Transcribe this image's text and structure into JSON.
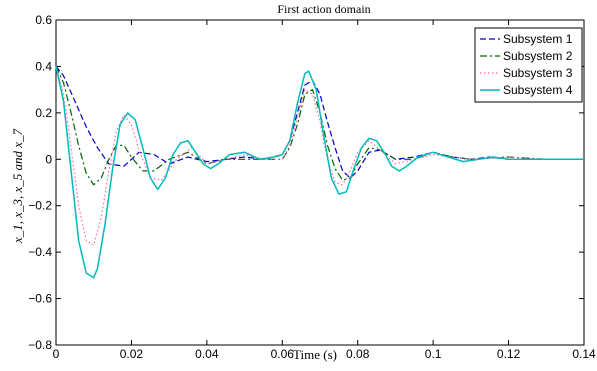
{
  "chart_data": {
    "type": "line",
    "title": "First action domain",
    "xlabel": "Time (s)",
    "ylabel": "x_1, x_3, x_5 and x_7",
    "xlim": [
      0,
      0.14
    ],
    "ylim": [
      -0.8,
      0.6
    ],
    "xticks": [
      0,
      0.02,
      0.04,
      0.06,
      0.08,
      0.1,
      0.12,
      0.14
    ],
    "xtick_labels": [
      "0",
      "0.02",
      "0.04",
      "0.06",
      "0.08",
      "0.1",
      "0.12",
      "0.14"
    ],
    "yticks": [
      -0.8,
      -0.6,
      -0.4,
      -0.2,
      0,
      0.2,
      0.4,
      0.6
    ],
    "ytick_labels": [
      "−0.8",
      "−0.6",
      "−0.4",
      "−0.2",
      "0",
      "0.2",
      "0.4",
      "0.6"
    ],
    "grid": false,
    "legend_position": "top-right",
    "series": [
      {
        "name": "Subsystem 1",
        "color": "#0000cc",
        "dash": "6,3",
        "x": [
          0,
          0.002,
          0.005,
          0.008,
          0.011,
          0.014,
          0.018,
          0.022,
          0.026,
          0.03,
          0.035,
          0.04,
          0.045,
          0.05,
          0.055,
          0.06,
          0.062,
          0.064,
          0.066,
          0.068,
          0.07,
          0.072,
          0.074,
          0.076,
          0.078,
          0.08,
          0.083,
          0.086,
          0.09,
          0.095,
          0.1,
          0.105,
          0.11,
          0.115,
          0.12,
          0.125,
          0.13,
          0.14
        ],
        "y": [
          0.4,
          0.36,
          0.25,
          0.14,
          0.05,
          -0.02,
          -0.03,
          0.03,
          0.02,
          -0.02,
          0.01,
          -0.01,
          0.0,
          0.01,
          0.0,
          0.02,
          0.08,
          0.2,
          0.32,
          0.34,
          0.28,
          0.16,
          0.05,
          -0.05,
          -0.08,
          -0.05,
          0.03,
          0.04,
          0.0,
          0.01,
          0.03,
          0.01,
          0.0,
          0.01,
          0.0,
          0.0,
          0.0,
          0.0
        ]
      },
      {
        "name": "Subsystem 2",
        "color": "#006600",
        "dash": "7,3,2,3",
        "x": [
          0,
          0.002,
          0.004,
          0.006,
          0.008,
          0.01,
          0.012,
          0.014,
          0.016,
          0.018,
          0.02,
          0.023,
          0.026,
          0.03,
          0.035,
          0.04,
          0.045,
          0.05,
          0.055,
          0.06,
          0.062,
          0.064,
          0.066,
          0.068,
          0.07,
          0.072,
          0.074,
          0.076,
          0.078,
          0.08,
          0.083,
          0.086,
          0.09,
          0.095,
          0.1,
          0.105,
          0.11,
          0.12,
          0.13,
          0.14
        ],
        "y": [
          0.4,
          0.33,
          0.2,
          0.06,
          -0.06,
          -0.11,
          -0.08,
          0.0,
          0.06,
          0.06,
          0.01,
          -0.05,
          -0.05,
          0.0,
          0.03,
          -0.02,
          0.0,
          0.0,
          0.0,
          0.0,
          0.05,
          0.15,
          0.28,
          0.3,
          0.2,
          0.06,
          -0.04,
          -0.09,
          -0.08,
          -0.02,
          0.05,
          0.04,
          0.0,
          0.0,
          0.03,
          0.01,
          0.0,
          0.01,
          0.0,
          0.0
        ]
      },
      {
        "name": "Subsystem 3",
        "color": "#ff66aa",
        "dash": "1.5,2.5",
        "x": [
          0,
          0.002,
          0.004,
          0.006,
          0.008,
          0.01,
          0.012,
          0.014,
          0.016,
          0.018,
          0.02,
          0.022,
          0.025,
          0.028,
          0.032,
          0.036,
          0.04,
          0.045,
          0.05,
          0.055,
          0.06,
          0.062,
          0.064,
          0.066,
          0.068,
          0.07,
          0.072,
          0.074,
          0.076,
          0.078,
          0.08,
          0.083,
          0.086,
          0.09,
          0.095,
          0.1,
          0.105,
          0.11,
          0.12,
          0.13,
          0.14
        ],
        "y": [
          0.4,
          0.28,
          0.05,
          -0.2,
          -0.35,
          -0.37,
          -0.25,
          -0.05,
          0.12,
          0.19,
          0.15,
          0.04,
          -0.08,
          -0.09,
          0.0,
          0.05,
          -0.02,
          0.0,
          0.02,
          0.0,
          0.0,
          0.06,
          0.18,
          0.3,
          0.28,
          0.16,
          0.0,
          -0.1,
          -0.11,
          -0.05,
          0.03,
          0.08,
          0.04,
          -0.02,
          0.0,
          0.02,
          0.01,
          0.0,
          0.01,
          0.0,
          0.0
        ]
      },
      {
        "name": "Subsystem 4",
        "color": "#00bbbb",
        "dash": "",
        "x": [
          0,
          0.002,
          0.004,
          0.006,
          0.008,
          0.01,
          0.011,
          0.013,
          0.015,
          0.017,
          0.019,
          0.021,
          0.023,
          0.025,
          0.027,
          0.029,
          0.031,
          0.033,
          0.035,
          0.037,
          0.039,
          0.041,
          0.043,
          0.046,
          0.05,
          0.054,
          0.058,
          0.06,
          0.062,
          0.064,
          0.066,
          0.067,
          0.069,
          0.071,
          0.073,
          0.075,
          0.077,
          0.079,
          0.081,
          0.083,
          0.085,
          0.087,
          0.089,
          0.091,
          0.093,
          0.096,
          0.1,
          0.104,
          0.108,
          0.112,
          0.116,
          0.12,
          0.125,
          0.13,
          0.135,
          0.14
        ],
        "y": [
          0.4,
          0.25,
          -0.05,
          -0.35,
          -0.49,
          -0.51,
          -0.47,
          -0.28,
          -0.04,
          0.15,
          0.2,
          0.17,
          0.05,
          -0.08,
          -0.13,
          -0.08,
          0.02,
          0.07,
          0.08,
          0.03,
          -0.02,
          -0.04,
          -0.02,
          0.02,
          0.03,
          0.0,
          0.01,
          0.02,
          0.08,
          0.24,
          0.37,
          0.38,
          0.3,
          0.1,
          -0.08,
          -0.15,
          -0.14,
          -0.04,
          0.05,
          0.09,
          0.08,
          0.03,
          -0.03,
          -0.05,
          -0.03,
          0.01,
          0.03,
          0.01,
          -0.01,
          0.0,
          0.01,
          0.0,
          0.0,
          0.0,
          0.0,
          0.0
        ]
      }
    ]
  }
}
